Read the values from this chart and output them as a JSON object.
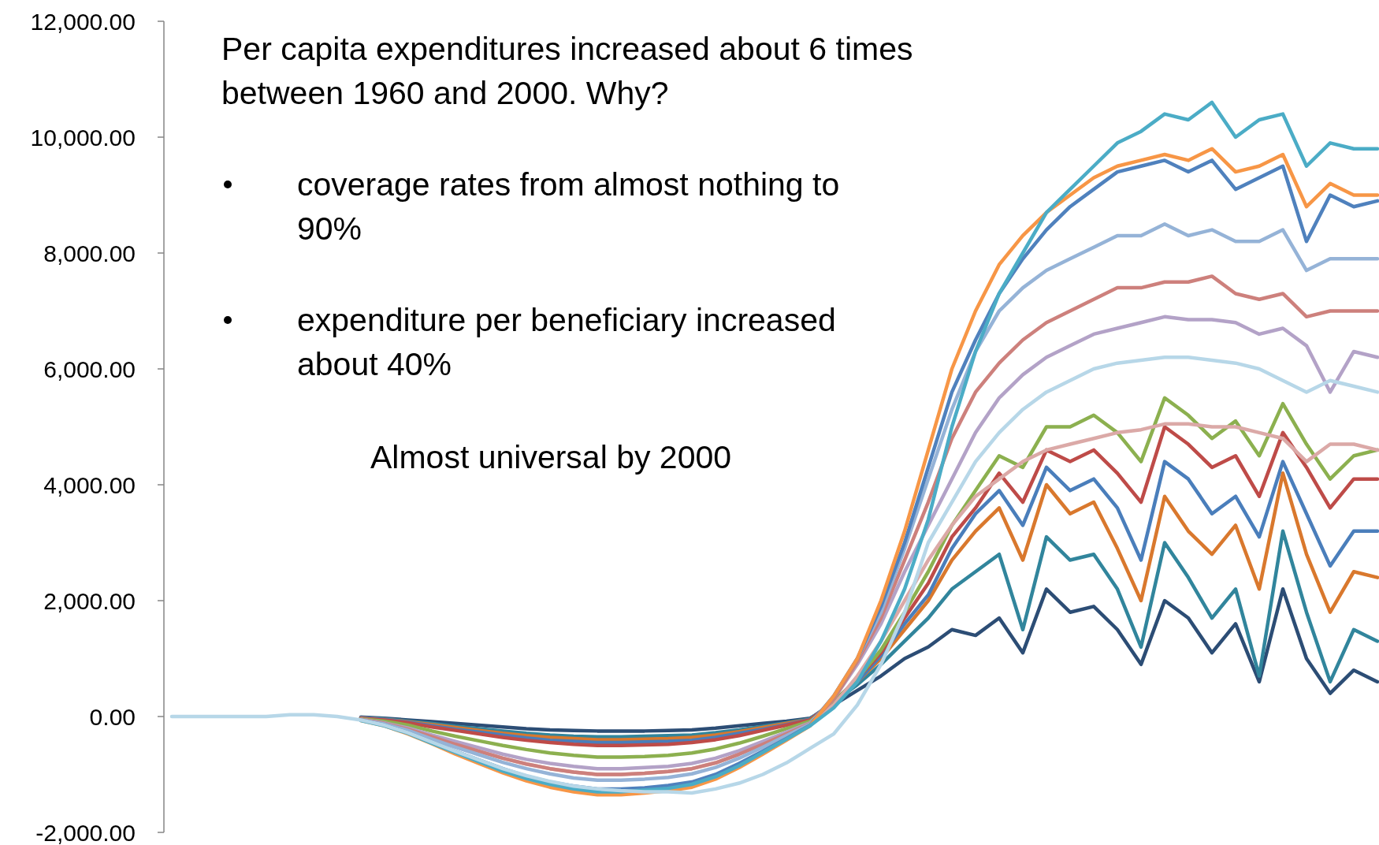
{
  "chart_data": {
    "type": "line",
    "categories": [
      null,
      null,
      null,
      null,
      null,
      null,
      null,
      null,
      null,
      null,
      null,
      null,
      null,
      null,
      null,
      null,
      null,
      null,
      null,
      null,
      null,
      null,
      null,
      null,
      null,
      null,
      null,
      null,
      null,
      null,
      null,
      null,
      null,
      null,
      null,
      null,
      null,
      null,
      null,
      null,
      null,
      null,
      null,
      null,
      null,
      null,
      null,
      null,
      null,
      null,
      null,
      null
    ],
    "ylim": [
      -2000,
      12000
    ],
    "yticks": [
      {
        "value": -2000,
        "label": "-2,000.00"
      },
      {
        "value": 0,
        "label": "0.00"
      },
      {
        "value": 2000,
        "label": "2,000.00"
      },
      {
        "value": 4000,
        "label": "4,000.00"
      },
      {
        "value": 6000,
        "label": "6,000.00"
      },
      {
        "value": 8000,
        "label": "8,000.00"
      },
      {
        "value": 10000,
        "label": "10,000.00"
      },
      {
        "value": 12000,
        "label": "12,000.00"
      }
    ],
    "tick_labels": "y",
    "grid": false,
    "marker": "none",
    "line_style": "solid",
    "annotations": [
      "Per capita expenditures increased about 6 times between 1960 and 2000. Why?",
      "coverage rates from almost nothing to 90%",
      "expenditure per beneficiary increased about 40%",
      "Almost universal by 2000"
    ],
    "series": [
      {
        "color": "#2c4d75",
        "values": [
          null,
          null,
          null,
          null,
          null,
          null,
          null,
          null,
          -10,
          -30,
          -60,
          -90,
          -120,
          -150,
          -180,
          -210,
          -230,
          -240,
          -250,
          -250,
          -250,
          -240,
          -230,
          -200,
          -160,
          -120,
          -80,
          -30,
          200,
          450,
          700,
          1000,
          1200,
          1500,
          1400,
          1700,
          1100,
          2200,
          1800,
          1900,
          1500,
          900,
          2000,
          1700,
          1100,
          1600,
          600,
          2200,
          1000,
          400,
          800,
          600
        ]
      },
      {
        "color": "#31859c",
        "values": [
          null,
          null,
          null,
          null,
          null,
          null,
          null,
          null,
          -20,
          -40,
          -80,
          -120,
          -170,
          -210,
          -250,
          -290,
          -320,
          -340,
          -350,
          -350,
          -340,
          -330,
          -320,
          -280,
          -230,
          -170,
          -110,
          -40,
          250,
          550,
          900,
          1300,
          1700,
          2200,
          2500,
          2800,
          1500,
          3100,
          2700,
          2800,
          2200,
          1200,
          3000,
          2400,
          1700,
          2200,
          700,
          3200,
          1800,
          600,
          1500,
          1300
        ]
      },
      {
        "color": "#d9782d",
        "values": [
          null,
          null,
          null,
          null,
          null,
          null,
          null,
          null,
          -20,
          -50,
          -90,
          -140,
          -190,
          -240,
          -290,
          -330,
          -360,
          -380,
          -400,
          -400,
          -390,
          -380,
          -360,
          -320,
          -260,
          -190,
          -120,
          -50,
          250,
          600,
          1000,
          1500,
          2000,
          2700,
          3200,
          3600,
          2700,
          4000,
          3500,
          3700,
          2900,
          2000,
          3800,
          3200,
          2800,
          3300,
          2200,
          4200,
          2800,
          1800,
          2500,
          2400
        ]
      },
      {
        "color": "#4a7ebb",
        "values": [
          null,
          null,
          null,
          null,
          null,
          null,
          null,
          null,
          -20,
          -50,
          -100,
          -160,
          -220,
          -270,
          -320,
          -370,
          -410,
          -430,
          -450,
          -450,
          -440,
          -430,
          -410,
          -360,
          -290,
          -220,
          -140,
          -50,
          250,
          600,
          1050,
          1600,
          2100,
          2900,
          3500,
          3900,
          3300,
          4300,
          3900,
          4100,
          3600,
          2700,
          4400,
          4100,
          3500,
          3800,
          3100,
          4400,
          3500,
          2600,
          3200,
          3200
        ]
      },
      {
        "color": "#be4b48",
        "values": [
          null,
          null,
          null,
          null,
          null,
          null,
          null,
          null,
          -30,
          -60,
          -110,
          -180,
          -240,
          -300,
          -360,
          -410,
          -450,
          -480,
          -500,
          -500,
          -490,
          -480,
          -450,
          -400,
          -330,
          -240,
          -150,
          -60,
          250,
          650,
          1100,
          1700,
          2300,
          3100,
          3600,
          4200,
          3700,
          4600,
          4400,
          4600,
          4200,
          3700,
          5000,
          4700,
          4300,
          4500,
          3800,
          4900,
          4300,
          3600,
          4100,
          4100
        ]
      },
      {
        "color": "#8cb04f",
        "values": [
          null,
          null,
          null,
          null,
          null,
          null,
          null,
          null,
          -40,
          -80,
          -150,
          -250,
          -340,
          -420,
          -500,
          -570,
          -630,
          -670,
          -700,
          -700,
          -690,
          -670,
          -630,
          -560,
          -460,
          -340,
          -210,
          -80,
          250,
          650,
          1150,
          1800,
          2500,
          3300,
          3900,
          4500,
          4300,
          5000,
          5000,
          5200,
          4900,
          4400,
          5500,
          5200,
          4800,
          5100,
          4500,
          5400,
          4700,
          4100,
          4500,
          4600
        ]
      },
      {
        "color": "#dba9a7",
        "values": [
          null,
          null,
          null,
          null,
          null,
          null,
          null,
          null,
          -50,
          -120,
          -220,
          -350,
          -480,
          -600,
          -720,
          -820,
          -900,
          -960,
          -1000,
          -1000,
          -980,
          -950,
          -900,
          -800,
          -650,
          -480,
          -300,
          -120,
          200,
          700,
          1300,
          2000,
          2700,
          3300,
          3800,
          4100,
          4400,
          4600,
          4700,
          4800,
          4900,
          4950,
          5050,
          5050,
          5000,
          5000,
          4900,
          4800,
          4400,
          4700,
          4700,
          4600
        ]
      },
      {
        "color": "#b3a2c7",
        "values": [
          null,
          null,
          null,
          null,
          null,
          null,
          null,
          null,
          -50,
          -110,
          -200,
          -320,
          -430,
          -540,
          -650,
          -740,
          -810,
          -860,
          -900,
          -900,
          -880,
          -860,
          -810,
          -720,
          -590,
          -430,
          -270,
          -110,
          300,
          900,
          1600,
          2500,
          3300,
          4100,
          4900,
          5500,
          5900,
          6200,
          6400,
          6600,
          6700,
          6800,
          6900,
          6850,
          6850,
          6800,
          6600,
          6700,
          6400,
          5600,
          6300,
          6200
        ]
      },
      {
        "color": "#cd807c",
        "values": [
          null,
          null,
          null,
          null,
          null,
          null,
          null,
          null,
          -50,
          -120,
          -220,
          -350,
          -480,
          -600,
          -720,
          -820,
          -900,
          -960,
          -1000,
          -1000,
          -980,
          -950,
          -900,
          -800,
          -650,
          -480,
          -300,
          -120,
          300,
          950,
          1700,
          2700,
          3700,
          4800,
          5600,
          6100,
          6500,
          6800,
          7000,
          7200,
          7400,
          7400,
          7500,
          7500,
          7600,
          7300,
          7200,
          7300,
          6900,
          7000,
          7000,
          7000
        ]
      },
      {
        "color": "#95b3d7",
        "values": [
          null,
          null,
          null,
          null,
          null,
          null,
          null,
          null,
          -60,
          -130,
          -240,
          -390,
          -530,
          -660,
          -790,
          -900,
          -990,
          -1060,
          -1100,
          -1100,
          -1080,
          -1050,
          -990,
          -880,
          -720,
          -530,
          -330,
          -130,
          350,
          1000,
          1800,
          2900,
          4100,
          5300,
          6300,
          7000,
          7400,
          7700,
          7900,
          8100,
          8300,
          8300,
          8500,
          8300,
          8400,
          8200,
          8200,
          8400,
          7700,
          7900,
          7900,
          7900
        ]
      },
      {
        "color": "#4f81bd",
        "values": [
          null,
          null,
          null,
          null,
          null,
          null,
          null,
          null,
          -60,
          -150,
          -280,
          -440,
          -600,
          -750,
          -900,
          -1030,
          -1130,
          -1200,
          -1250,
          -1250,
          -1230,
          -1190,
          -1130,
          -1000,
          -810,
          -600,
          -380,
          -150,
          350,
          1000,
          1900,
          3000,
          4300,
          5600,
          6500,
          7300,
          7900,
          8400,
          8800,
          9100,
          9400,
          9500,
          9600,
          9400,
          9600,
          9100,
          9300,
          9500,
          8200,
          9000,
          8800,
          8900
        ]
      },
      {
        "color": "#f79646",
        "values": [
          null,
          null,
          null,
          null,
          null,
          null,
          null,
          null,
          -70,
          -160,
          -300,
          -470,
          -650,
          -810,
          -970,
          -1110,
          -1220,
          -1300,
          -1350,
          -1350,
          -1320,
          -1280,
          -1220,
          -1080,
          -880,
          -650,
          -410,
          -160,
          350,
          1000,
          2000,
          3200,
          4600,
          6000,
          7000,
          7800,
          8300,
          8700,
          9000,
          9300,
          9500,
          9600,
          9700,
          9600,
          9800,
          9400,
          9500,
          9700,
          8800,
          9200,
          9000,
          9000
        ]
      },
      {
        "color": "#4bacc6",
        "values": [
          null,
          null,
          null,
          null,
          null,
          null,
          null,
          null,
          -70,
          -160,
          -290,
          -460,
          -620,
          -780,
          -940,
          -1070,
          -1170,
          -1250,
          -1300,
          -1300,
          -1270,
          -1240,
          -1170,
          -1040,
          -850,
          -620,
          -390,
          -160,
          150,
          600,
          1300,
          2200,
          3400,
          5000,
          6300,
          7300,
          8000,
          8700,
          9100,
          9500,
          9900,
          10100,
          10400,
          10300,
          10600,
          10000,
          10300,
          10400,
          9500,
          9900,
          9800,
          9800
        ]
      },
      {
        "color": "#b7d7e8",
        "values": [
          0,
          0,
          0,
          0,
          0,
          30,
          30,
          0,
          -60,
          -150,
          -280,
          -440,
          -600,
          -750,
          -900,
          -1020,
          -1120,
          -1200,
          -1250,
          -1280,
          -1300,
          -1300,
          -1320,
          -1250,
          -1150,
          -1000,
          -800,
          -550,
          -300,
          200,
          900,
          1800,
          3000,
          3700,
          4400,
          4900,
          5300,
          5600,
          5800,
          6000,
          6100,
          6150,
          6200,
          6200,
          6150,
          6100,
          6000,
          5800,
          5600,
          5800,
          5700,
          5600
        ]
      }
    ]
  }
}
